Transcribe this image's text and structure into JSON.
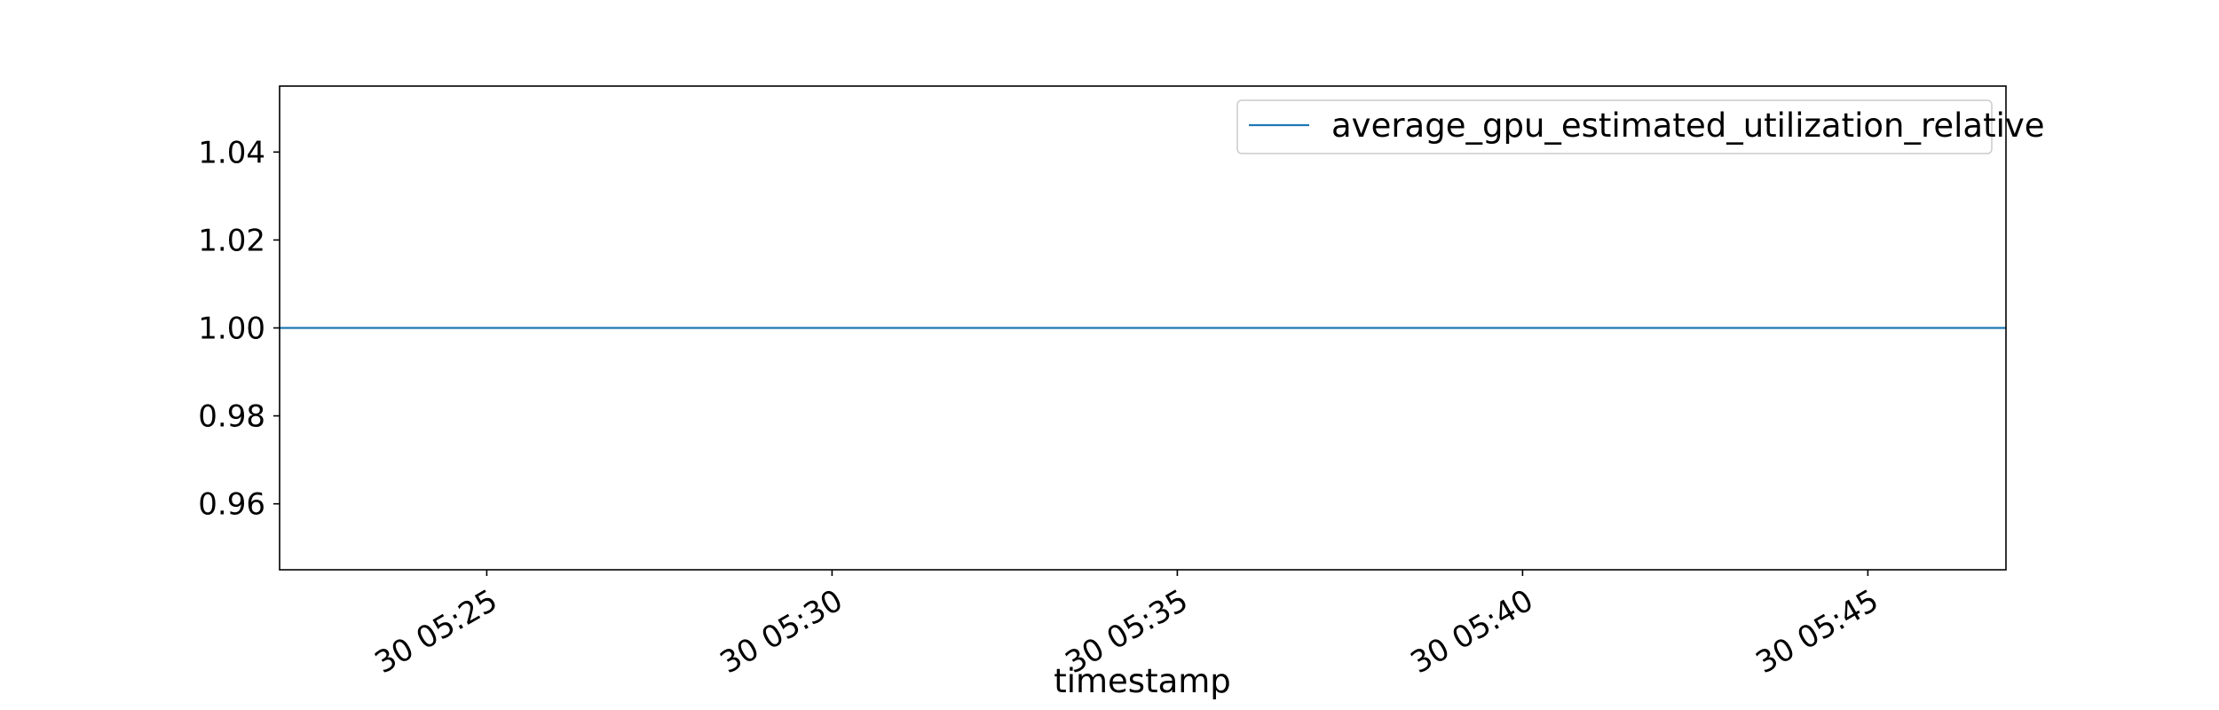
{
  "chart_data": {
    "type": "line",
    "xlabel": "timestamp",
    "ylabel": "",
    "x_ticks": [
      "30 05:25",
      "30 05:30",
      "30 05:35",
      "30 05:40",
      "30 05:45"
    ],
    "y_ticks": [
      0.96,
      0.98,
      1.0,
      1.02,
      1.04
    ],
    "xlim": [
      "30 05:22",
      "30 05:47"
    ],
    "ylim": [
      0.945,
      1.055
    ],
    "grid": false,
    "legend_position": "top-right",
    "series": [
      {
        "name": "average_gpu_estimated_utilization_relative",
        "color": "#1f77b4",
        "x": [
          "30 05:22",
          "30 05:47"
        ],
        "y": [
          1.0,
          1.0
        ]
      }
    ]
  }
}
